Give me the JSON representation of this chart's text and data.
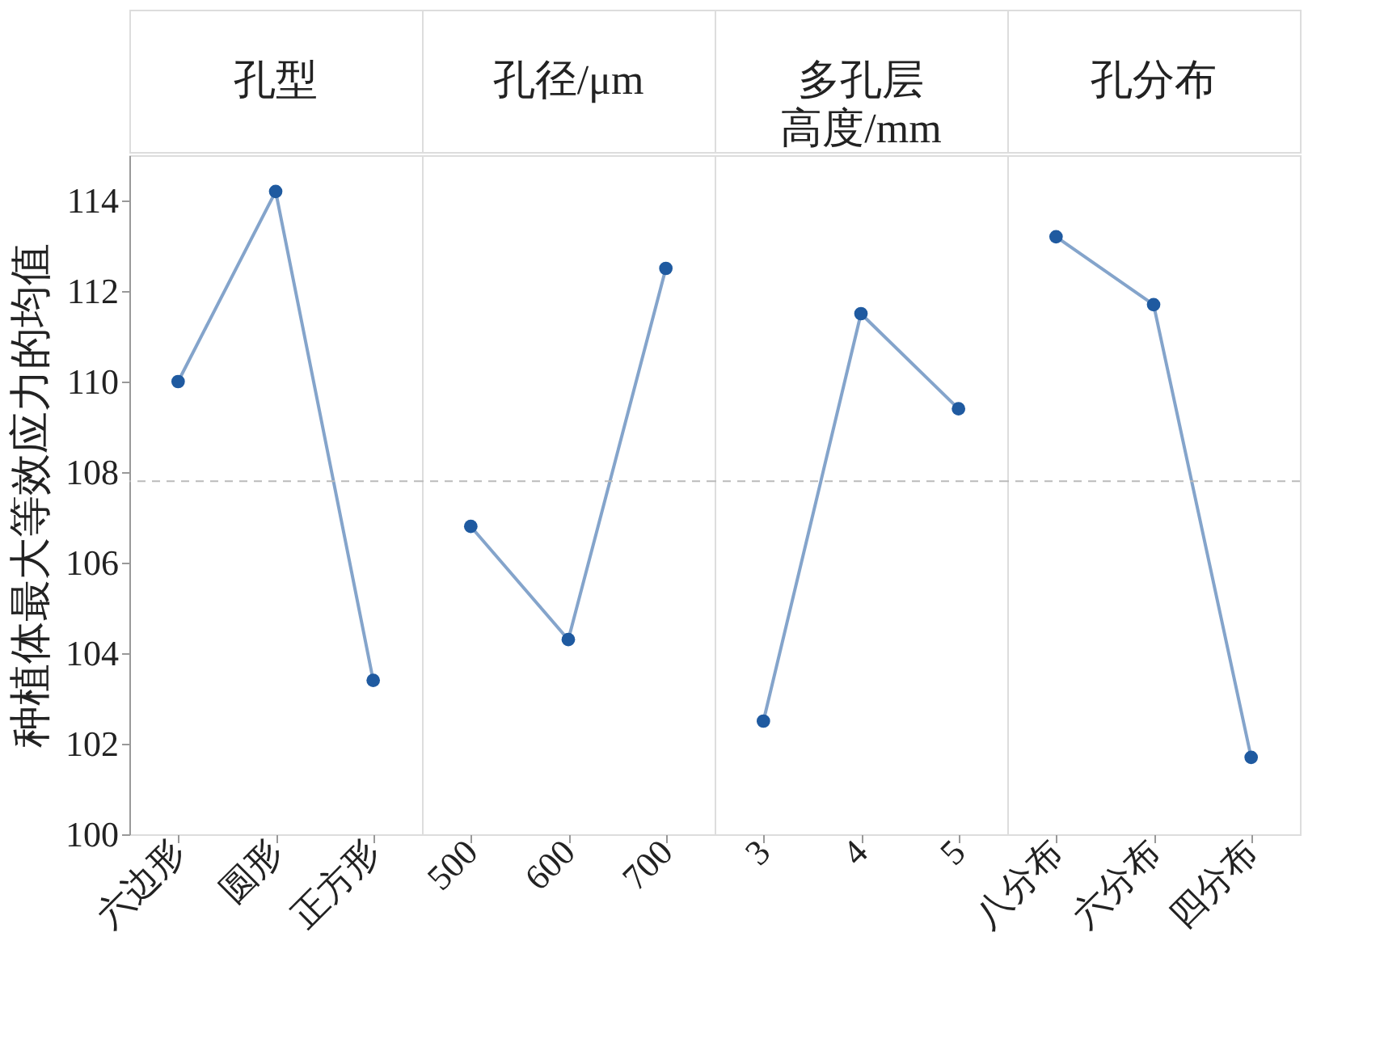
{
  "chart_data": [
    {
      "type": "line",
      "title": "孔型",
      "ylabel": "种植体最大等效应力的均值",
      "categories": [
        "六边形",
        "圆形",
        "正方形"
      ],
      "series": [
        {
          "color": "#1f5aa0",
          "values": [
            110.0,
            114.2,
            103.4
          ]
        }
      ],
      "ylim": [
        100,
        115
      ],
      "yticks": [
        100,
        102,
        104,
        106,
        108,
        110,
        112,
        114
      ],
      "ref_lines": [
        {
          "axis": "y",
          "value": 107.8,
          "color": "#bbbbbb",
          "line_style": "dashed"
        }
      ],
      "marker": "circle",
      "line_style": "solid"
    },
    {
      "type": "line",
      "title": "孔径/μm",
      "categories": [
        "500",
        "600",
        "700"
      ],
      "series": [
        {
          "color": "#1f5aa0",
          "values": [
            106.8,
            104.3,
            112.5
          ]
        }
      ],
      "ylim": [
        100,
        115
      ],
      "tick_labels": "x",
      "ref_lines": [
        {
          "axis": "y",
          "value": 107.8,
          "color": "#bbbbbb",
          "line_style": "dashed"
        }
      ],
      "marker": "circle",
      "line_style": "solid"
    },
    {
      "type": "line",
      "title": "多孔层高度/mm",
      "categories": [
        "3",
        "4",
        "5"
      ],
      "series": [
        {
          "color": "#1f5aa0",
          "values": [
            102.5,
            111.5,
            109.4
          ]
        }
      ],
      "ylim": [
        100,
        115
      ],
      "tick_labels": "x",
      "ref_lines": [
        {
          "axis": "y",
          "value": 107.8,
          "color": "#bbbbbb",
          "line_style": "dashed"
        }
      ],
      "marker": "circle",
      "line_style": "solid"
    },
    {
      "type": "line",
      "title": "孔分布",
      "categories": [
        "八分布",
        "六分布",
        "四分布"
      ],
      "series": [
        {
          "color": "#1f5aa0",
          "values": [
            113.2,
            111.7,
            101.7
          ]
        }
      ],
      "ylim": [
        100,
        115
      ],
      "tick_labels": "x",
      "ref_lines": [
        {
          "axis": "y",
          "value": 107.8,
          "color": "#bbbbbb",
          "line_style": "dashed"
        }
      ],
      "marker": "circle",
      "line_style": "solid"
    }
  ]
}
